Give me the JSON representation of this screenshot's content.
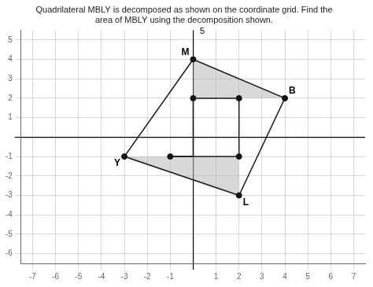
{
  "chart_data": {
    "type": "scatter",
    "title": [
      "Quadrilateral MBLY is decomposed as shown on the coordinate grid. Find the",
      "area of MBLY using the decomposition shown."
    ],
    "xlim": [
      -7.5,
      7.5
    ],
    "ylim": [
      -6.5,
      5.5
    ],
    "xticks": [
      -7,
      -6,
      -5,
      -4,
      -3,
      -2,
      -1,
      {
        "value": 0,
        "label": null
      },
      1,
      2,
      3,
      4,
      5,
      6,
      7
    ],
    "yticks": [
      -6,
      -5,
      -4,
      -3,
      -2,
      -1,
      {
        "value": 0,
        "label": null
      },
      1,
      2,
      3,
      4,
      5
    ],
    "grid": true,
    "legend": false,
    "series": [
      {
        "type": "area",
        "color": "#b8b8b8",
        "x": [
          0,
          4,
          2,
          0
        ],
        "values": [
          4,
          2,
          2,
          2
        ]
      },
      {
        "type": "area",
        "color": "#b8b8b8",
        "x": [
          -3,
          -1,
          2,
          2
        ],
        "values": [
          -1,
          -1,
          -1,
          -3
        ]
      },
      {
        "type": "line",
        "color": "#1a1a1a",
        "x": [
          0,
          4,
          2,
          -3,
          0
        ],
        "values": [
          4,
          2,
          -3,
          -1,
          4
        ]
      },
      {
        "type": "line",
        "color": "#1a1a1a",
        "x": [
          0,
          2
        ],
        "values": [
          2,
          2
        ]
      },
      {
        "type": "line",
        "color": "#1a1a1a",
        "x": [
          -1,
          2
        ],
        "values": [
          -1,
          -1
        ]
      },
      {
        "type": "line",
        "color": "#1a1a1a",
        "x": [
          2,
          2
        ],
        "values": [
          2,
          -1
        ]
      },
      {
        "type": "line",
        "color": "#1a1a1a",
        "x": [
          0,
          -1
        ],
        "values": [
          -1,
          -1
        ]
      },
      {
        "type": "line",
        "color": "#1a1a1a",
        "x": [
          0,
          0
        ],
        "values": [
          2,
          -1
        ]
      },
      {
        "type": "scatter",
        "color": "#111111",
        "x": [
          0,
          4,
          2,
          -3,
          0,
          2,
          -1,
          2
        ],
        "values": [
          4,
          2,
          -3,
          -1,
          2,
          2,
          -1,
          -1
        ]
      }
    ],
    "annotations": [
      {
        "text": "M",
        "x": 0,
        "y": 4
      },
      {
        "text": "B",
        "x": 4,
        "y": 2
      },
      {
        "text": "L",
        "x": 2,
        "y": -3
      },
      {
        "text": "Y",
        "x": -3,
        "y": -1
      },
      {
        "text": "5",
        "x": 0.12,
        "y": 5.1
      }
    ]
  }
}
